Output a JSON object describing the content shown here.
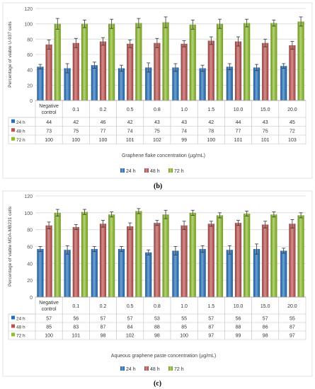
{
  "chart_data": [
    {
      "panel_label": "(b)",
      "type": "bar",
      "ylabel": "Percentage of viable U-937 cells",
      "xlabel": "Graphene flake concentration (µg/mL)",
      "ylim": [
        0,
        120
      ],
      "yticks": [
        0,
        20,
        40,
        60,
        80,
        100,
        120
      ],
      "grid": true,
      "legend_position": "bottom",
      "data_table": true,
      "categories": [
        "Negative control",
        "0.1",
        "0.2",
        "0.5",
        "0.8",
        "1.0",
        "1.5",
        "10.0",
        "15.0",
        "20.0"
      ],
      "series": [
        {
          "name": "24 h",
          "color": "#1f6fbf",
          "values": [
            44,
            42,
            46,
            42,
            43,
            43,
            42,
            44,
            43,
            45
          ],
          "errors": [
            3,
            6,
            4,
            4,
            6,
            5,
            4,
            4,
            4,
            3
          ]
        },
        {
          "name": "48 h",
          "color": "#c0504d",
          "values": [
            73,
            75,
            77,
            74,
            75,
            74,
            78,
            77,
            75,
            72
          ],
          "errors": [
            6,
            6,
            5,
            5,
            6,
            4,
            5,
            6,
            5,
            5
          ]
        },
        {
          "name": "72 h",
          "color": "#8cbf26",
          "values": [
            100,
            100,
            100,
            101,
            102,
            99,
            100,
            101,
            101,
            103
          ],
          "errors": [
            7,
            5,
            6,
            6,
            7,
            6,
            6,
            5,
            4,
            6
          ]
        }
      ]
    },
    {
      "panel_label": "(c)",
      "type": "bar",
      "ylabel": "Percentage of viable MDA-MB231 cells",
      "xlabel": "Aqueous graphene paste concentration (µg/mL)",
      "ylim": [
        0,
        120
      ],
      "yticks": [
        0,
        20,
        40,
        60,
        80,
        100,
        120
      ],
      "grid": true,
      "legend_position": "bottom",
      "data_table": true,
      "categories": [
        "Negative control",
        "0.1",
        "0.2",
        "0.5",
        "0.8",
        "1.0",
        "1.5",
        "10.0",
        "15.0",
        "20.0"
      ],
      "series": [
        {
          "name": "24 h",
          "color": "#1f6fbf",
          "values": [
            57,
            56,
            57,
            57,
            53,
            55,
            57,
            56,
            57,
            55
          ],
          "errors": [
            3,
            5,
            3,
            3,
            3,
            5,
            4,
            5,
            6,
            3
          ]
        },
        {
          "name": "48 h",
          "color": "#c0504d",
          "values": [
            85,
            83,
            87,
            84,
            88,
            85,
            87,
            88,
            86,
            87
          ],
          "errors": [
            4,
            3,
            4,
            4,
            3,
            5,
            3,
            3,
            4,
            5
          ]
        },
        {
          "name": "72 h",
          "color": "#8cbf26",
          "values": [
            100,
            101,
            98,
            102,
            98,
            100,
            97,
            99,
            98,
            97
          ],
          "errors": [
            4,
            3,
            3,
            3,
            5,
            3,
            3,
            3,
            3,
            3
          ]
        }
      ]
    }
  ]
}
